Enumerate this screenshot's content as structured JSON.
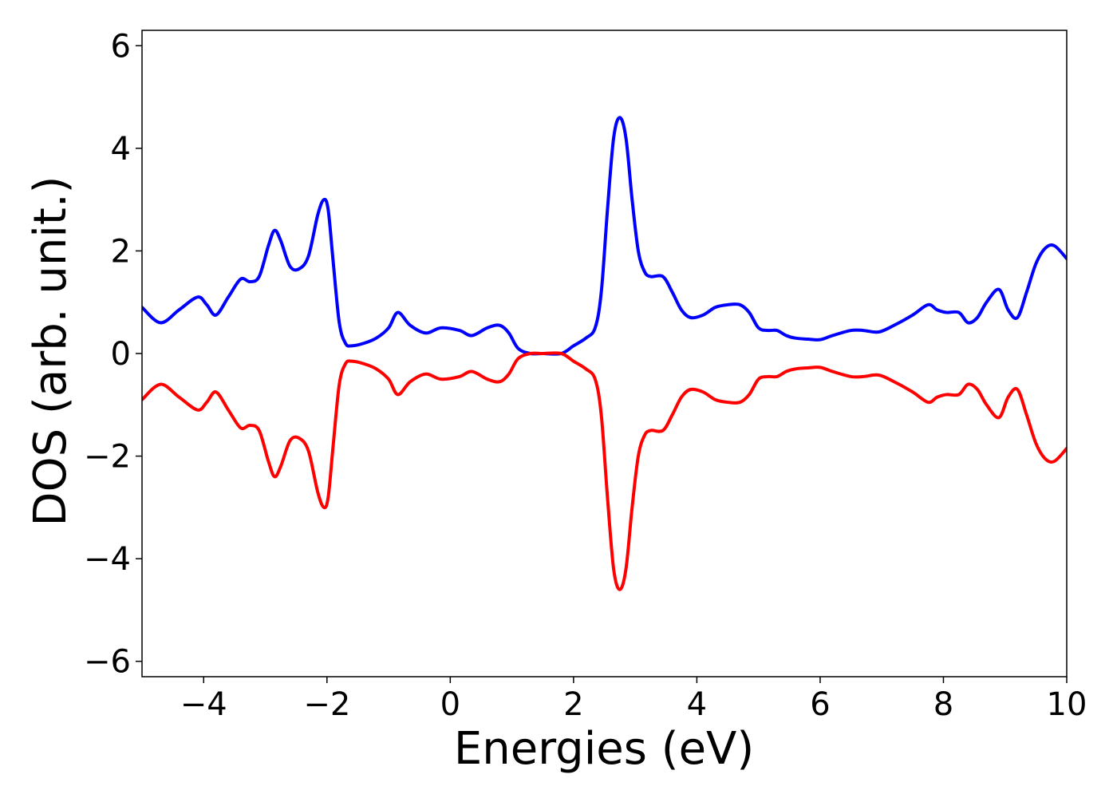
{
  "chart_data": {
    "type": "line",
    "xlabel": "Energies (eV)",
    "ylabel": "DOS (arb. unit.)",
    "xlim": [
      -5,
      10
    ],
    "ylim": [
      -6.3,
      6.3
    ],
    "x_ticks": [
      -4,
      -2,
      0,
      2,
      4,
      6,
      8,
      10
    ],
    "x_tick_labels": [
      "−4",
      "−2",
      "0",
      "2",
      "4",
      "6",
      "8",
      "10"
    ],
    "y_ticks": [
      6,
      4,
      2,
      0,
      -2,
      -4,
      -6
    ],
    "y_tick_labels": [
      "6",
      "4",
      "2",
      "0",
      "−2",
      "−4",
      "−6"
    ],
    "grid": false,
    "legend": "none",
    "x": [
      -5.0,
      -4.7,
      -4.4,
      -4.1,
      -3.95,
      -3.8,
      -3.6,
      -3.4,
      -3.25,
      -3.1,
      -2.95,
      -2.85,
      -2.75,
      -2.6,
      -2.45,
      -2.3,
      -2.15,
      -2.05,
      -1.98,
      -1.9,
      -1.8,
      -1.7,
      -1.6,
      -1.4,
      -1.2,
      -1.0,
      -0.85,
      -0.65,
      -0.4,
      -0.15,
      0.15,
      0.35,
      0.6,
      0.8,
      0.95,
      1.1,
      1.3,
      1.5,
      1.8,
      2.0,
      2.2,
      2.35,
      2.45,
      2.55,
      2.65,
      2.75,
      2.85,
      2.95,
      3.05,
      3.15,
      3.25,
      3.45,
      3.6,
      3.75,
      3.9,
      4.1,
      4.3,
      4.5,
      4.7,
      4.85,
      5.0,
      5.15,
      5.3,
      5.45,
      5.6,
      5.8,
      6.0,
      6.2,
      6.5,
      6.7,
      6.95,
      7.2,
      7.5,
      7.75,
      7.9,
      8.05,
      8.25,
      8.4,
      8.55,
      8.7,
      8.9,
      9.05,
      9.2,
      9.35,
      9.5,
      9.65,
      9.8,
      10.0
    ],
    "series": [
      {
        "color": "#0000ff",
        "y": [
          0.9,
          0.6,
          0.85,
          1.1,
          0.95,
          0.75,
          1.1,
          1.45,
          1.4,
          1.5,
          2.1,
          2.4,
          2.2,
          1.7,
          1.65,
          1.9,
          2.7,
          3.0,
          2.8,
          1.8,
          0.6,
          0.2,
          0.15,
          0.2,
          0.3,
          0.5,
          0.8,
          0.55,
          0.4,
          0.5,
          0.45,
          0.35,
          0.5,
          0.55,
          0.4,
          0.1,
          0.0,
          0.0,
          0.0,
          0.15,
          0.3,
          0.5,
          1.2,
          2.8,
          4.2,
          4.6,
          4.2,
          3.0,
          2.0,
          1.6,
          1.5,
          1.5,
          1.2,
          0.85,
          0.7,
          0.75,
          0.9,
          0.95,
          0.95,
          0.8,
          0.5,
          0.45,
          0.45,
          0.35,
          0.3,
          0.28,
          0.27,
          0.35,
          0.45,
          0.45,
          0.42,
          0.55,
          0.75,
          0.95,
          0.85,
          0.8,
          0.8,
          0.6,
          0.7,
          1.0,
          1.25,
          0.85,
          0.7,
          1.2,
          1.75,
          2.05,
          2.1,
          1.85
        ]
      },
      {
        "color": "#ff0000",
        "y": [
          -0.9,
          -0.6,
          -0.85,
          -1.1,
          -0.95,
          -0.75,
          -1.1,
          -1.45,
          -1.4,
          -1.5,
          -2.1,
          -2.4,
          -2.2,
          -1.7,
          -1.65,
          -1.9,
          -2.7,
          -3.0,
          -2.8,
          -1.8,
          -0.6,
          -0.2,
          -0.15,
          -0.2,
          -0.3,
          -0.5,
          -0.8,
          -0.55,
          -0.4,
          -0.5,
          -0.45,
          -0.35,
          -0.5,
          -0.55,
          -0.4,
          -0.1,
          0.0,
          0.0,
          0.0,
          -0.15,
          -0.3,
          -0.5,
          -1.2,
          -2.8,
          -4.2,
          -4.6,
          -4.2,
          -3.0,
          -2.0,
          -1.6,
          -1.5,
          -1.5,
          -1.2,
          -0.85,
          -0.7,
          -0.75,
          -0.9,
          -0.95,
          -0.95,
          -0.8,
          -0.5,
          -0.45,
          -0.45,
          -0.35,
          -0.3,
          -0.28,
          -0.27,
          -0.35,
          -0.45,
          -0.45,
          -0.42,
          -0.55,
          -0.75,
          -0.95,
          -0.85,
          -0.8,
          -0.8,
          -0.6,
          -0.7,
          -1.0,
          -1.25,
          -0.85,
          -0.7,
          -1.2,
          -1.75,
          -2.05,
          -2.1,
          -1.85
        ]
      }
    ]
  }
}
